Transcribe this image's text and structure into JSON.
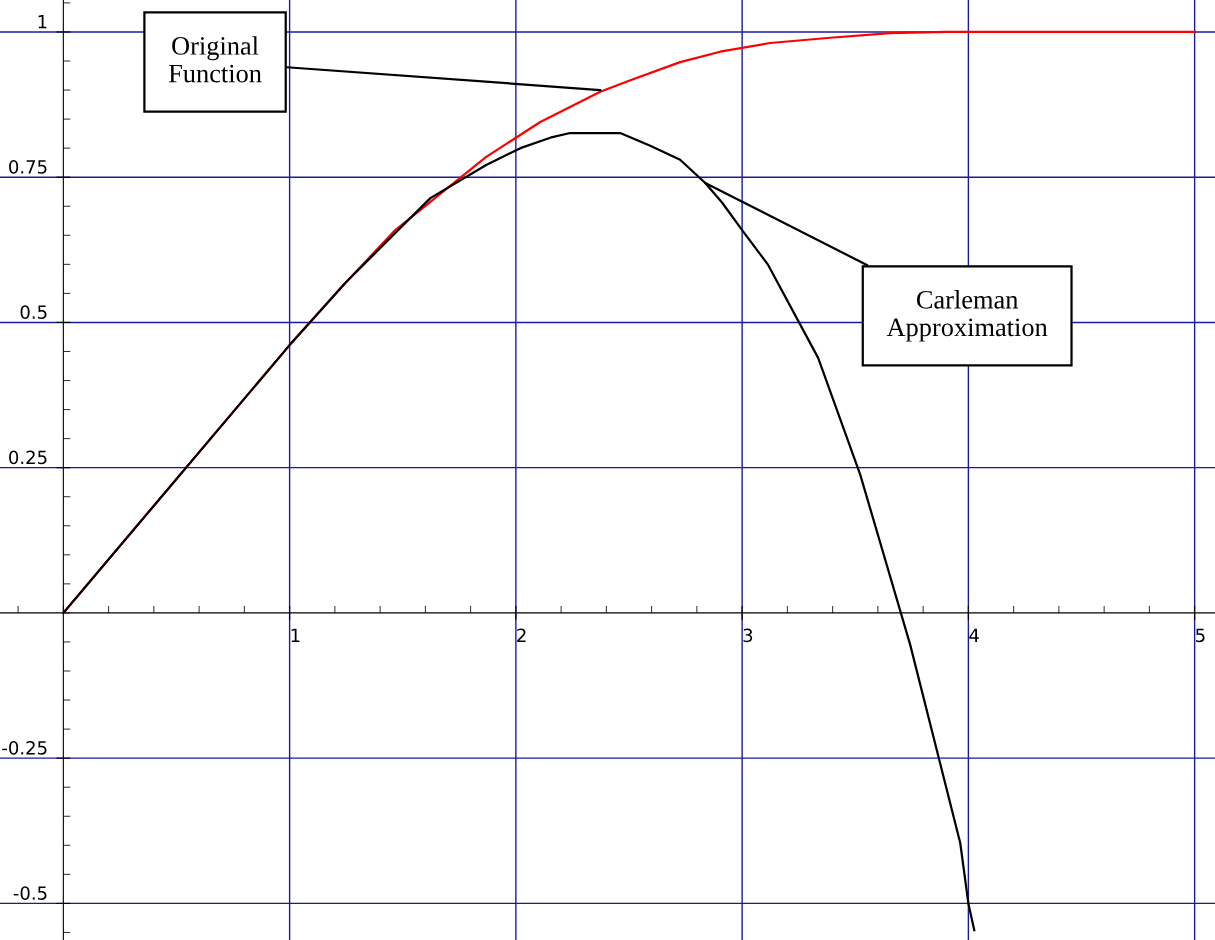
{
  "chart_data": {
    "type": "line",
    "xlim": [
      -0.28,
      5.09
    ],
    "ylim": [
      -0.563,
      1.055
    ],
    "xticks": [
      1,
      2,
      3,
      4,
      5
    ],
    "yticks": [
      -0.5,
      -0.25,
      0.25,
      0.5,
      0.75,
      1
    ],
    "grid": true,
    "marker": "none",
    "line_style": "solid",
    "series": [
      {
        "color": "#ff0000",
        "x": [
          0,
          1,
          1.246,
          1.467,
          1.869,
          2.108,
          2.373,
          2.506,
          2.726,
          2.903,
          3.124,
          3.389,
          3.654,
          3.9,
          4,
          5
        ],
        "values": [
          0,
          0.461,
          0.568,
          0.659,
          0.785,
          0.845,
          0.897,
          0.917,
          0.948,
          0.966,
          0.981,
          0.99,
          0.998,
          1,
          1,
          1
        ]
      },
      {
        "color": "#000000",
        "x": [
          0,
          1,
          1.246,
          1.467,
          1.622,
          1.869,
          2.02,
          2.152,
          2.24,
          2.461,
          2.594,
          2.726,
          2.837,
          2.912,
          3.0,
          3.115,
          3.336,
          3.522,
          3.743,
          3.964,
          4.0,
          4.026
        ],
        "values": [
          0,
          0.461,
          0.568,
          0.654,
          0.714,
          0.771,
          0.8,
          0.818,
          0.826,
          0.826,
          0.804,
          0.78,
          0.74,
          0.706,
          0.659,
          0.599,
          0.439,
          0.238,
          -0.055,
          -0.396,
          -0.5,
          -0.546
        ]
      }
    ],
    "annotations": [
      {
        "text": "Original\nFunction",
        "x": 2.373,
        "y": 0.9
      },
      {
        "text": "Carleman\nApproximation",
        "x": 2.837,
        "y": 0.74
      }
    ]
  }
}
